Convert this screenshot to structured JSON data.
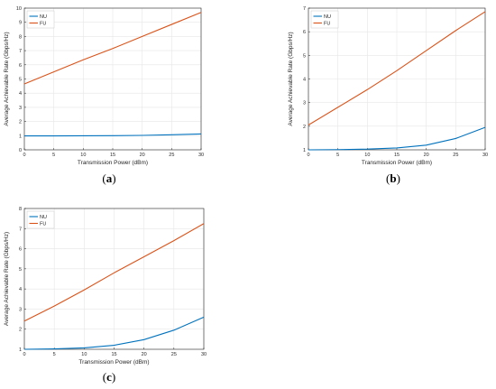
{
  "captions": {
    "a": {
      "open": "(",
      "letter": "a",
      "close": ")"
    },
    "b": {
      "open": "(",
      "letter": "b",
      "close": ")"
    },
    "c": {
      "open": "(",
      "letter": "c",
      "close": ")"
    }
  },
  "colors": {
    "NU": "#0072BD",
    "FU": "#D95319",
    "grid": "#e6e6e6",
    "axis": "#262626"
  },
  "chart_data": [
    {
      "id": "a",
      "type": "line",
      "title": "",
      "xlabel": "Transmission Power (dBm)",
      "ylabel": "Average Achievable Rate (Gbps/Hz)",
      "xlim": [
        0,
        30
      ],
      "ylim": [
        0,
        10
      ],
      "xticks": [
        0,
        5,
        10,
        15,
        20,
        25,
        30
      ],
      "yticks": [
        0,
        1,
        2,
        3,
        4,
        5,
        6,
        7,
        8,
        9,
        10
      ],
      "grid": true,
      "legend_position": "top-left",
      "x": [
        0,
        5,
        10,
        15,
        20,
        25,
        30
      ],
      "series": [
        {
          "name": "NU",
          "values": [
            0.98,
            0.98,
            0.99,
            1.0,
            1.02,
            1.06,
            1.12
          ]
        },
        {
          "name": "FU",
          "values": [
            4.65,
            5.5,
            6.35,
            7.15,
            8.0,
            8.85,
            9.7
          ]
        }
      ]
    },
    {
      "id": "b",
      "type": "line",
      "title": "",
      "xlabel": "Transmission Power (dBm)",
      "ylabel": "Average Achievable Rate (Gbps/Hz)",
      "xlim": [
        0,
        30
      ],
      "ylim": [
        1,
        7
      ],
      "xticks": [
        0,
        5,
        10,
        15,
        20,
        25,
        30
      ],
      "yticks": [
        1,
        2,
        3,
        4,
        5,
        6,
        7
      ],
      "grid": true,
      "legend_position": "top-left",
      "x": [
        0,
        5,
        10,
        15,
        20,
        25,
        30
      ],
      "series": [
        {
          "name": "NU",
          "values": [
            1.0,
            1.01,
            1.03,
            1.08,
            1.2,
            1.48,
            1.95
          ]
        },
        {
          "name": "FU",
          "values": [
            2.05,
            2.8,
            3.55,
            4.35,
            5.2,
            6.05,
            6.85
          ]
        }
      ]
    },
    {
      "id": "c",
      "type": "line",
      "title": "",
      "xlabel": "Transmission Power (dBm)",
      "ylabel": "Average Achievable Rate (Gbps/Hz)",
      "xlim": [
        0,
        30
      ],
      "ylim": [
        1,
        8
      ],
      "xticks": [
        0,
        5,
        10,
        15,
        20,
        25,
        30
      ],
      "yticks": [
        1,
        2,
        3,
        4,
        5,
        6,
        7,
        8
      ],
      "grid": true,
      "legend_position": "top-left",
      "x": [
        0,
        5,
        10,
        15,
        20,
        25,
        30
      ],
      "series": [
        {
          "name": "NU",
          "values": [
            1.0,
            1.02,
            1.07,
            1.2,
            1.48,
            1.95,
            2.6
          ]
        },
        {
          "name": "FU",
          "values": [
            2.4,
            3.15,
            3.95,
            4.8,
            5.6,
            6.4,
            7.25
          ]
        }
      ]
    }
  ]
}
